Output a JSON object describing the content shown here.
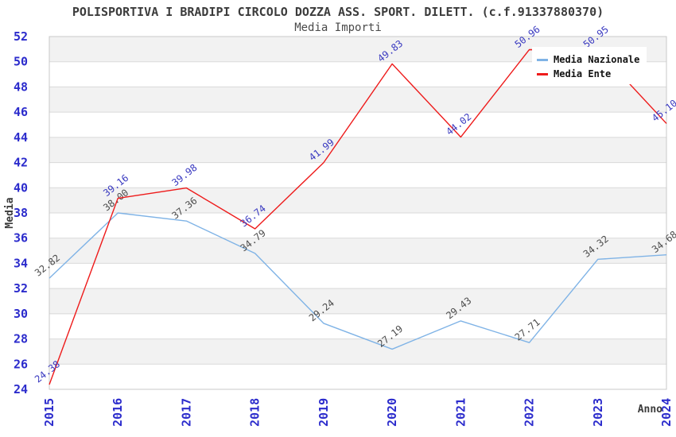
{
  "chart": {
    "title": "POLISPORTIVA I BRADIPI CIRCOLO DOZZA ASS. SPORT. DILETT. (c.f.91337880370)",
    "subtitle": "Media Importi",
    "ylabel": "Media",
    "xlabel": "Anno"
  },
  "colors": {
    "axis_tick": "#2b2bcc",
    "axis_title": "#3c3c3c",
    "gridline": "#d9d9d9",
    "band": "#f2f2f2",
    "plot_border": "#c8c8c8",
    "background": "#ffffff"
  },
  "chart_data": {
    "type": "line",
    "title": "Media Importi",
    "xlabel": "Anno",
    "ylabel": "Media",
    "categories": [
      "2015",
      "2016",
      "2017",
      "2018",
      "2019",
      "2020",
      "2021",
      "2022",
      "2023",
      "2024"
    ],
    "series": [
      {
        "name": "Media Nazionale",
        "color": "#7fb3e6",
        "label_color": "#4d4d4d",
        "values": [
          32.82,
          38.0,
          37.36,
          34.79,
          29.24,
          27.19,
          29.43,
          27.71,
          34.32,
          34.68
        ]
      },
      {
        "name": "Media Ente",
        "color": "#ee1b1b",
        "label_color": "#3a3ac0",
        "values": [
          24.38,
          39.16,
          39.98,
          36.74,
          41.99,
          49.83,
          44.02,
          50.96,
          50.95,
          45.1
        ]
      }
    ],
    "ylim": [
      24,
      52
    ],
    "ytick_step": 2,
    "grid": true,
    "banded_background": true,
    "legend_position": "top-right",
    "value_label_decimals": 2
  }
}
